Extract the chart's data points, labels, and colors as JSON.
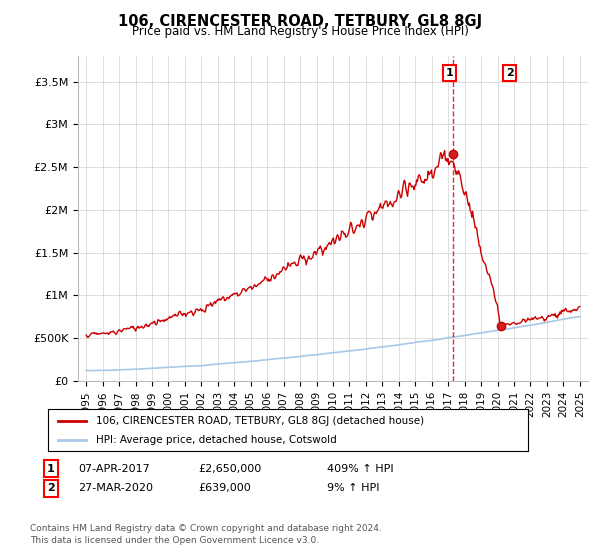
{
  "title": "106, CIRENCESTER ROAD, TETBURY, GL8 8GJ",
  "subtitle": "Price paid vs. HM Land Registry's House Price Index (HPI)",
  "legend_line1": "106, CIRENCESTER ROAD, TETBURY, GL8 8GJ (detached house)",
  "legend_line2": "HPI: Average price, detached house, Cotswold",
  "annotation1_label": "1",
  "annotation1_date": "07-APR-2017",
  "annotation1_price": "£2,650,000",
  "annotation1_hpi": "409% ↑ HPI",
  "annotation1_year": 2017.27,
  "annotation1_value": 2650000,
  "annotation2_label": "2",
  "annotation2_date": "27-MAR-2020",
  "annotation2_price": "£639,000",
  "annotation2_hpi": "9% ↑ HPI",
  "annotation2_year": 2020.24,
  "annotation2_value": 639000,
  "ylabel_ticks": [
    "£0",
    "£500K",
    "£1M",
    "£1.5M",
    "£2M",
    "£2.5M",
    "£3M",
    "£3.5M"
  ],
  "ytick_values": [
    0,
    500000,
    1000000,
    1500000,
    2000000,
    2500000,
    3000000,
    3500000
  ],
  "ylim": [
    0,
    3800000
  ],
  "xlim_start": 1994.5,
  "xlim_end": 2025.5,
  "hpi_color": "#a8c8e8",
  "price_color": "#cc0000",
  "dashed_line_color": "#cc0000",
  "background_color": "#ffffff",
  "grid_color": "#d0d0d0",
  "footnote_line1": "Contains HM Land Registry data © Crown copyright and database right 2024.",
  "footnote_line2": "This data is licensed under the Open Government Licence v3.0."
}
